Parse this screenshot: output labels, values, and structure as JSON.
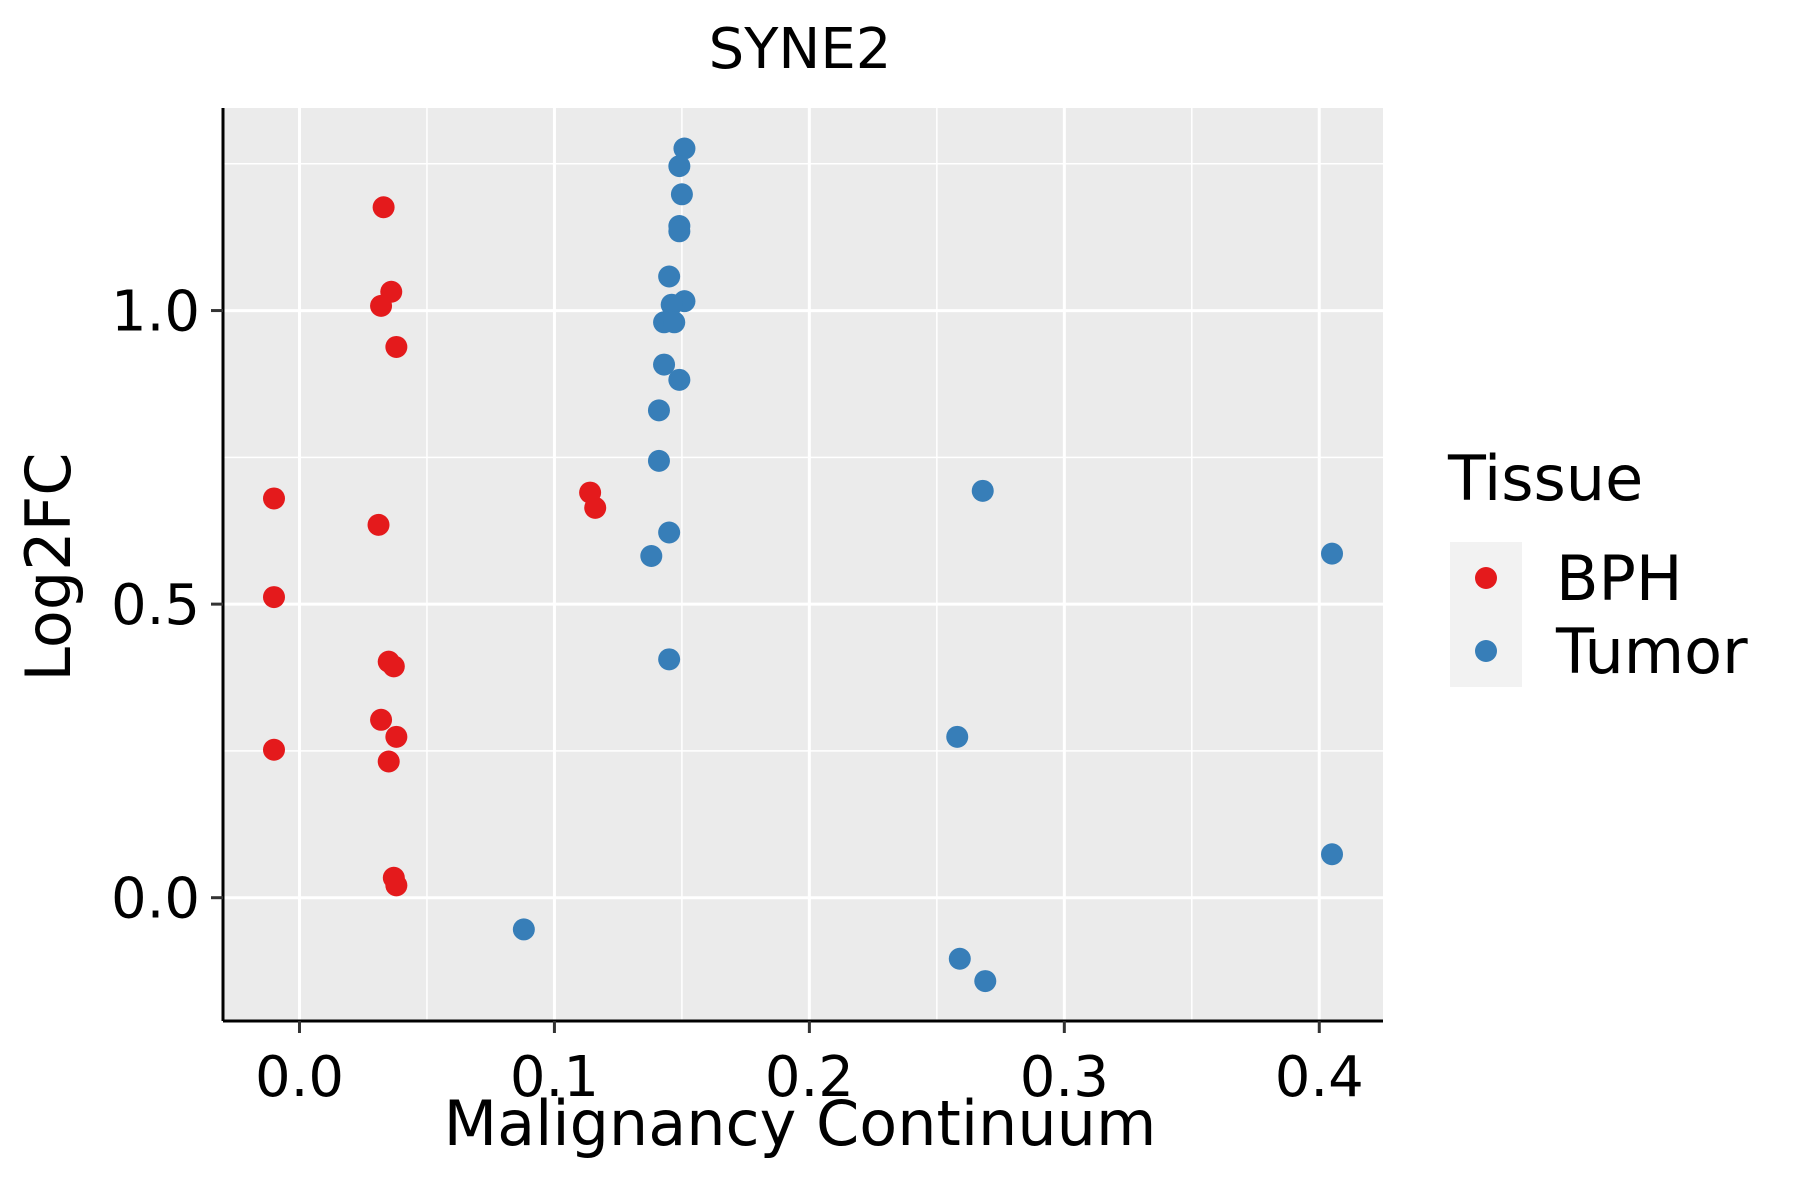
{
  "chart_data": {
    "type": "scatter",
    "title": "SYNE2",
    "xlabel": "Malignancy Continuum",
    "ylabel": "Log2FC",
    "xlim": [
      -0.03,
      0.425
    ],
    "ylim": [
      -0.21,
      1.345
    ],
    "x_ticks": [
      0.0,
      0.1,
      0.2,
      0.3,
      0.4
    ],
    "x_tick_labels": [
      "0.0",
      "0.1",
      "0.2",
      "0.3",
      "0.4"
    ],
    "y_ticks": [
      0.0,
      0.5,
      1.0
    ],
    "y_tick_labels": [
      "0.0",
      "0.5",
      "1.0"
    ],
    "grid": true,
    "legend": {
      "title": "Tissue",
      "position": "right"
    },
    "series": [
      {
        "name": "BPH",
        "color": "#E41A1C",
        "points": [
          {
            "x": 0.033,
            "y": 1.176
          },
          {
            "x": 0.036,
            "y": 1.032
          },
          {
            "x": 0.032,
            "y": 1.008
          },
          {
            "x": 0.038,
            "y": 0.938
          },
          {
            "x": -0.01,
            "y": 0.68
          },
          {
            "x": 0.031,
            "y": 0.635
          },
          {
            "x": -0.01,
            "y": 0.512
          },
          {
            "x": 0.035,
            "y": 0.402
          },
          {
            "x": 0.037,
            "y": 0.394
          },
          {
            "x": 0.032,
            "y": 0.303
          },
          {
            "x": 0.038,
            "y": 0.274
          },
          {
            "x": -0.01,
            "y": 0.252
          },
          {
            "x": 0.035,
            "y": 0.232
          },
          {
            "x": 0.037,
            "y": 0.034
          },
          {
            "x": 0.038,
            "y": 0.021
          },
          {
            "x": 0.114,
            "y": 0.69
          },
          {
            "x": 0.116,
            "y": 0.664
          }
        ]
      },
      {
        "name": "Tumor",
        "color": "#377EB8",
        "points": [
          {
            "x": 0.151,
            "y": 1.276
          },
          {
            "x": 0.149,
            "y": 1.246
          },
          {
            "x": 0.15,
            "y": 1.198
          },
          {
            "x": 0.149,
            "y": 1.144
          },
          {
            "x": 0.149,
            "y": 1.135
          },
          {
            "x": 0.145,
            "y": 1.058
          },
          {
            "x": 0.151,
            "y": 1.016
          },
          {
            "x": 0.146,
            "y": 1.01
          },
          {
            "x": 0.143,
            "y": 0.98
          },
          {
            "x": 0.147,
            "y": 0.98
          },
          {
            "x": 0.143,
            "y": 0.908
          },
          {
            "x": 0.149,
            "y": 0.882
          },
          {
            "x": 0.141,
            "y": 0.83
          },
          {
            "x": 0.141,
            "y": 0.744
          },
          {
            "x": 0.145,
            "y": 0.622
          },
          {
            "x": 0.138,
            "y": 0.582
          },
          {
            "x": 0.145,
            "y": 0.406
          },
          {
            "x": 0.268,
            "y": 0.693
          },
          {
            "x": 0.405,
            "y": 0.586
          },
          {
            "x": 0.258,
            "y": 0.274
          },
          {
            "x": 0.405,
            "y": 0.074
          },
          {
            "x": 0.088,
            "y": -0.054
          },
          {
            "x": 0.259,
            "y": -0.104
          },
          {
            "x": 0.269,
            "y": -0.142
          }
        ]
      }
    ]
  }
}
